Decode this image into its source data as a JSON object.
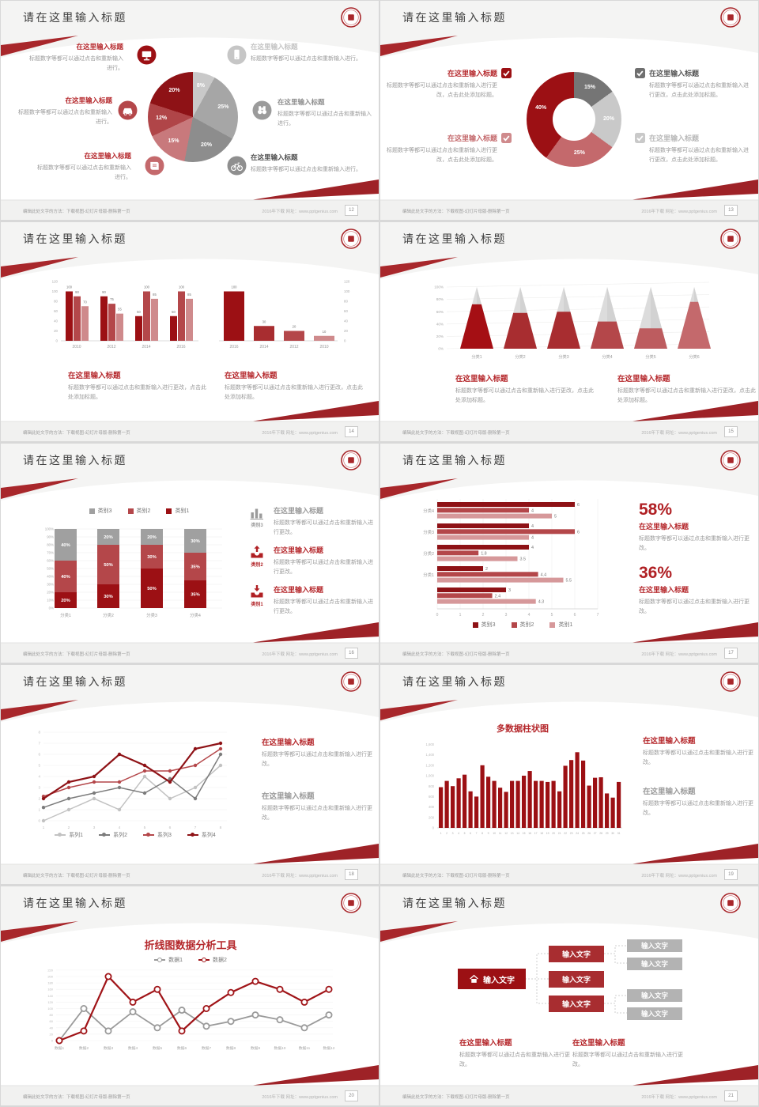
{
  "colors": {
    "accent_dark": "#8e1216",
    "accent": "#9c1014",
    "accent_mid": "#b4474a",
    "accent_light": "#cf8a8c",
    "gray_dark": "#6f6f6f",
    "gray_mid": "#a0a0a0",
    "gray_light": "#c9c9c9",
    "swoosh": "#a8272b"
  },
  "common": {
    "slide_title": "请在这里输入标题",
    "footer_left": "编辑此处文字的方法：下载视图-幻灯片母版-删除第一页",
    "footer_right": "2016年下载  网址：www.pptgenius.com",
    "logo": "school-seal"
  },
  "slides": [
    {
      "page": "12",
      "type": "pie",
      "callout_title": "在这里输入标题",
      "callout_body": "标题数字等都可以通过点击和重新输入进行。",
      "chart_data": {
        "type": "pie",
        "labels": [
          "8%",
          "25%",
          "20%",
          "15%",
          "12%",
          "20%"
        ],
        "values": [
          8,
          25,
          20,
          15,
          12,
          20
        ],
        "colors": [
          "#c9c9c9",
          "#a6a6a6",
          "#8d8d8d",
          "#c8797c",
          "#b04548",
          "#8e1216"
        ]
      },
      "left_icons": [
        "monitor",
        "car",
        "book"
      ],
      "left_icon_colors": [
        "#9c1014",
        "#b4474a",
        "#c4696c"
      ],
      "right_icons": [
        "phone",
        "binoculars",
        "bicycle"
      ],
      "right_icon_colors": [
        "#c6c6c6",
        "#9b9b9b",
        "#8f8f8f"
      ],
      "right_title_colors": [
        "#c3c3c3",
        "#8f8f8f",
        "#4f4f4f"
      ]
    },
    {
      "page": "13",
      "type": "donut",
      "callout_title": "在这里输入标题",
      "callout_body": "标题数字等都可以通过点击和重新输入进行更改，点击此处添加标题。",
      "chart_data": {
        "type": "pie",
        "donut": true,
        "labels": [
          "15%",
          "20%",
          "25%",
          "40%"
        ],
        "values": [
          15,
          20,
          25,
          40
        ],
        "colors": [
          "#757575",
          "#c9c9c9",
          "#c4696c",
          "#9c1014"
        ]
      },
      "checks": [
        "#9c1014",
        "#cf8a8c",
        "#6f6f6f",
        "#c9c9c9"
      ],
      "check_title_colors": [
        "#b5282c",
        "#c4696c",
        "#555555",
        "#b9b9b9"
      ]
    },
    {
      "page": "14",
      "type": "bars2",
      "block_title": "在这里输入标题",
      "block_body": "标题数字等都可以通过点击和重新输入进行更改，点击此处添加标题。",
      "chart_data": [
        {
          "type": "bar",
          "categories": [
            "2010",
            "2012",
            "2014",
            "2016"
          ],
          "ylim": [
            0,
            120
          ],
          "series": [
            {
              "name": "系列1",
              "color": "#9c1014",
              "values": [
                100,
                90,
                50,
                50
              ]
            },
            {
              "name": "系列2",
              "color": "#b4474a",
              "values": [
                90,
                75,
                100,
                100
              ]
            },
            {
              "name": "系列3",
              "color": "#cf8a8c",
              "values": [
                70,
                55,
                85,
                85
              ]
            }
          ]
        },
        {
          "type": "bar",
          "categories": [
            "2016",
            "2014",
            "2012",
            "2010"
          ],
          "ylim": [
            0,
            120
          ],
          "values": [
            100,
            30,
            20,
            10
          ],
          "colors": [
            "#9c1014",
            "#a82d30",
            "#b4474a",
            "#cf8a8c"
          ]
        }
      ]
    },
    {
      "page": "15",
      "type": "pyramids",
      "block_title": "在这里输入标题",
      "block_body": "标题数字等都可以通过点击和重新输入进行更改，点击此处添加标题。",
      "chart_data": {
        "type": "bar",
        "categories": [
          "分类1",
          "分类2",
          "分类3",
          "分类4",
          "分类5",
          "分类6"
        ],
        "values": [
          72,
          58,
          60,
          44,
          33,
          76
        ],
        "ylim": [
          0,
          100
        ],
        "unit": "%",
        "colors": [
          "#a50f14",
          "#a82d30",
          "#a82d30",
          "#b4474a",
          "#bd5c5f",
          "#c4696c"
        ]
      }
    },
    {
      "page": "16",
      "type": "stacked",
      "callout_title": "在这里输入标题",
      "callout_body": "标题数字等都可以通过点击和重新输入进行更改。",
      "chart_data": {
        "type": "bar",
        "stacked": true,
        "categories": [
          "分类1",
          "分类2",
          "分类3",
          "分类4"
        ],
        "ylim": [
          0,
          100
        ],
        "unit": "%",
        "series": [
          {
            "name": "类别1",
            "color": "#9c1014",
            "values": [
              20,
              30,
              50,
              35
            ]
          },
          {
            "name": "类别2",
            "color": "#b4474a",
            "values": [
              40,
              50,
              30,
              35
            ]
          },
          {
            "name": "类别3",
            "color": "#a0a0a0",
            "values": [
              40,
              20,
              20,
              30
            ]
          }
        ],
        "legend_order": [
          "类别3",
          "类别2",
          "类别1"
        ],
        "legend_colors": [
          "#a0a0a0",
          "#b4474a",
          "#9c1014"
        ]
      },
      "side_icons": [
        "chart-bars",
        "tray-up",
        "tray-down"
      ],
      "side_captions": [
        "类别3",
        "类别2",
        "类别1"
      ],
      "side_icon_colors": [
        "#9b9b9b",
        "#b02024",
        "#b02024"
      ],
      "side_title_colors": [
        "#9a9a9a",
        "#b5282c",
        "#b5282c"
      ]
    },
    {
      "page": "17",
      "type": "hbar",
      "chart_data": {
        "type": "bar",
        "horizontal": true,
        "xlim": [
          0,
          7
        ],
        "categories": [
          "分类4",
          "分类3",
          "分类2",
          "分类1",
          ""
        ],
        "series": [
          {
            "name": "类别3",
            "color": "#8e1216",
            "values": [
              6,
              4,
              4,
              2,
              3
            ]
          },
          {
            "name": "类别2",
            "color": "#b4474a",
            "values": [
              4,
              6,
              1.8,
              4.4,
              2.4
            ]
          },
          {
            "name": "类别1",
            "color": "#d6989a",
            "values": [
              5,
              4,
              3.5,
              5.5,
              4.3
            ]
          }
        ]
      },
      "stats": [
        {
          "value": "58%",
          "title": "在这里输入标题",
          "body": "标题数字等都可以通过点击和重新输入进行更改。"
        },
        {
          "value": "36%",
          "title": "在这里输入标题",
          "body": "标题数字等都可以通过点击和重新输入进行更改。"
        }
      ]
    },
    {
      "page": "18",
      "type": "lines",
      "blocks": [
        {
          "title": "在这里输入标题",
          "color": "#b5282c",
          "body": "标题数字等都可以通过点击和重新输入进行更改。"
        },
        {
          "title": "在这里输入标题",
          "color": "#9a9a9a",
          "body": "标题数字等都可以通过点击和重新输入进行更改。"
        }
      ],
      "chart_data": {
        "type": "line",
        "x": [
          1,
          2,
          3,
          4,
          5,
          6,
          7,
          8
        ],
        "ylim": [
          0,
          8
        ],
        "series": [
          {
            "name": "系列1",
            "color": "#c2c2c2",
            "values": [
              0,
              1,
              2,
              1,
              4,
              2,
              3,
              5
            ]
          },
          {
            "name": "系列2",
            "color": "#7c7c7c",
            "values": [
              1.2,
              2,
              2.5,
              3,
              2.5,
              3.8,
              2,
              6
            ]
          },
          {
            "name": "系列3",
            "color": "#b4474a",
            "values": [
              2.2,
              3,
              3.5,
              3.5,
              4.5,
              4.5,
              5,
              6.5
            ]
          },
          {
            "name": "系列4",
            "color": "#8e1216",
            "values": [
              2,
              3.5,
              4,
              6,
              5,
              3.5,
              6.5,
              7
            ]
          }
        ]
      }
    },
    {
      "page": "19",
      "type": "histogram",
      "blocks": [
        {
          "title": "在这里输入标题",
          "color": "#b5282c",
          "body": "标题数字等都可以通过点击和重新输入进行更改。"
        },
        {
          "title": "在这里输入标题",
          "color": "#9a9a9a",
          "body": "标题数字等都可以通过点击和重新输入进行更改。"
        }
      ],
      "chart_data": {
        "type": "bar",
        "title": "多数据柱状图",
        "ylim": [
          0,
          1600
        ],
        "color": "#9c1014",
        "categories": [
          "1",
          "2",
          "3",
          "4",
          "5",
          "6",
          "7",
          "8",
          "9",
          "10",
          "11",
          "12",
          "13",
          "14",
          "15",
          "16",
          "17",
          "18",
          "19",
          "20",
          "21",
          "22",
          "23",
          "24",
          "25",
          "26",
          "27",
          "28",
          "29",
          "30",
          "31"
        ],
        "values": [
          780,
          900,
          800,
          950,
          1020,
          700,
          600,
          1200,
          980,
          900,
          770,
          690,
          900,
          900,
          1000,
          1090,
          900,
          900,
          880,
          900,
          700,
          1190,
          1300,
          1450,
          1290,
          810,
          960,
          970,
          660,
          580,
          880
        ]
      }
    },
    {
      "page": "20",
      "type": "line2",
      "chart_data": {
        "type": "line",
        "title": "折线图数据分析工具",
        "ylim": [
          0,
          220
        ],
        "categories": [
          "数据1",
          "数据2",
          "数据3",
          "数据4",
          "数据5",
          "数据6",
          "数据7",
          "数据8",
          "数据9",
          "数据10",
          "数据11",
          "数据12"
        ],
        "series": [
          {
            "name": "数据1",
            "color": "#9a9a9a",
            "values": [
              0,
              100,
              30,
              90,
              40,
              95,
              45,
              60,
              80,
              65,
              40,
              80
            ]
          },
          {
            "name": "数据2",
            "color": "#a01418",
            "values": [
              0,
              30,
              200,
              120,
              160,
              30,
              100,
              150,
              185,
              160,
              120,
              160
            ]
          }
        ]
      },
      "blocks": []
    },
    {
      "page": "21",
      "type": "tree",
      "tree": {
        "root": "输入文字",
        "root_icon": "home",
        "mid": [
          "输入文字",
          "输入文字",
          "输入文字"
        ],
        "leaves": [
          "输入文字",
          "输入文字",
          "输入文字",
          "输入文字"
        ]
      },
      "blocks": [
        {
          "title": "在这里输入标题",
          "body": "标题数字等都可以通过点击和重新输入进行更改。"
        },
        {
          "title": "在这里输入标题",
          "body": "标题数字等都可以通过点击和重新输入进行更改。"
        }
      ]
    }
  ]
}
